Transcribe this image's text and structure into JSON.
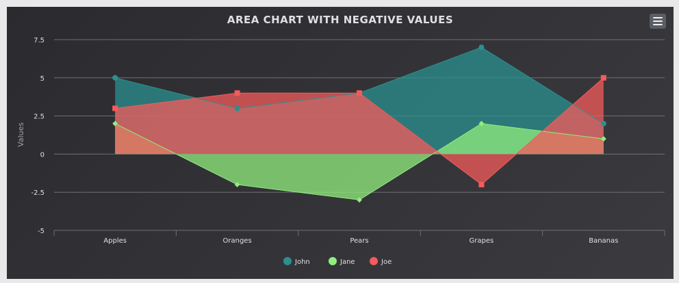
{
  "chart_data": {
    "type": "area",
    "title": "AREA CHART WITH NEGATIVE VALUES",
    "xlabel": "",
    "ylabel": "Values",
    "categories": [
      "Apples",
      "Oranges",
      "Pears",
      "Grapes",
      "Bananas"
    ],
    "yticks": [
      "7.5",
      "5",
      "2.5",
      "0",
      "-2.5",
      "-5"
    ],
    "ytick_values": [
      7.5,
      5,
      2.5,
      0,
      -2.5,
      -5
    ],
    "ylim": [
      -5,
      7.5
    ],
    "grid": true,
    "legend_position": "bottom-center",
    "series": [
      {
        "name": "John",
        "values": [
          5,
          3,
          4,
          7,
          2
        ],
        "color": "#2b908f",
        "marker": "circle"
      },
      {
        "name": "Jane",
        "values": [
          2,
          -2,
          -3,
          2,
          1
        ],
        "color": "#90ee7e",
        "marker": "diamond"
      },
      {
        "name": "Joe",
        "values": [
          3,
          4,
          4,
          -2,
          5
        ],
        "color": "#f45b5b",
        "marker": "square"
      }
    ]
  },
  "menu": {
    "icon": "hamburger-menu-icon"
  }
}
